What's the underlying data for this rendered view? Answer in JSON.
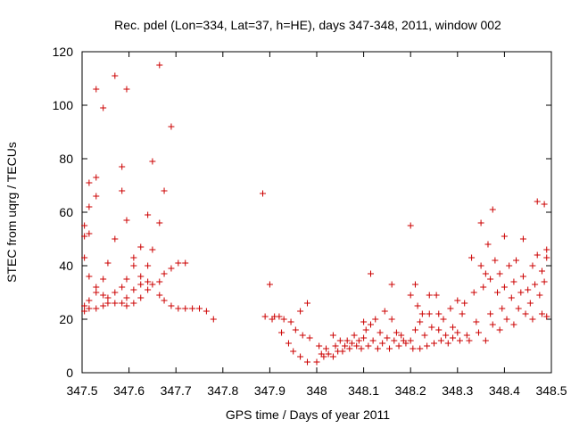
{
  "chart_data": {
    "type": "scatter",
    "title": "Rec. pdel (Lon=334, Lat=37, h=HE), days 347-348, 2011, window 002",
    "xlabel": "GPS time / Days of year 2011",
    "ylabel": "STEC from uqrg / TECUs",
    "xlim": [
      347.5,
      348.5
    ],
    "ylim": [
      0,
      120
    ],
    "xticks": [
      "347.5",
      "347.6",
      "347.7",
      "347.8",
      "347.9",
      "348",
      "348.1",
      "348.2",
      "348.3",
      "348.4",
      "348.5"
    ],
    "yticks": [
      "0",
      "20",
      "40",
      "60",
      "80",
      "100",
      "120"
    ],
    "grid": false,
    "marker": "plus",
    "color": "#cc0000",
    "points": [
      [
        347.505,
        55
      ],
      [
        347.505,
        51
      ],
      [
        347.505,
        43
      ],
      [
        347.505,
        25
      ],
      [
        347.505,
        23
      ],
      [
        347.515,
        71
      ],
      [
        347.515,
        62
      ],
      [
        347.515,
        52
      ],
      [
        347.515,
        36
      ],
      [
        347.515,
        27
      ],
      [
        347.515,
        24
      ],
      [
        347.53,
        106
      ],
      [
        347.53,
        73
      ],
      [
        347.53,
        66
      ],
      [
        347.53,
        32
      ],
      [
        347.53,
        30
      ],
      [
        347.53,
        24
      ],
      [
        347.545,
        99
      ],
      [
        347.545,
        35
      ],
      [
        347.545,
        29
      ],
      [
        347.545,
        25
      ],
      [
        347.555,
        41
      ],
      [
        347.555,
        28
      ],
      [
        347.555,
        26
      ],
      [
        347.57,
        111
      ],
      [
        347.57,
        50
      ],
      [
        347.57,
        30
      ],
      [
        347.57,
        26
      ],
      [
        347.585,
        77
      ],
      [
        347.585,
        68
      ],
      [
        347.585,
        32
      ],
      [
        347.585,
        26
      ],
      [
        347.595,
        106
      ],
      [
        347.595,
        57
      ],
      [
        347.595,
        35
      ],
      [
        347.595,
        28
      ],
      [
        347.595,
        25
      ],
      [
        347.61,
        43
      ],
      [
        347.61,
        40
      ],
      [
        347.61,
        31
      ],
      [
        347.61,
        26
      ],
      [
        347.625,
        47
      ],
      [
        347.625,
        36
      ],
      [
        347.625,
        33
      ],
      [
        347.625,
        28
      ],
      [
        347.64,
        59
      ],
      [
        347.64,
        40
      ],
      [
        347.64,
        34
      ],
      [
        347.64,
        31
      ],
      [
        347.65,
        79
      ],
      [
        347.65,
        46
      ],
      [
        347.65,
        33
      ],
      [
        347.665,
        115
      ],
      [
        347.665,
        56
      ],
      [
        347.665,
        34
      ],
      [
        347.665,
        29
      ],
      [
        347.675,
        68
      ],
      [
        347.675,
        37
      ],
      [
        347.675,
        27
      ],
      [
        347.69,
        92
      ],
      [
        347.69,
        39
      ],
      [
        347.69,
        25
      ],
      [
        347.705,
        41
      ],
      [
        347.705,
        24
      ],
      [
        347.72,
        41
      ],
      [
        347.72,
        24
      ],
      [
        347.735,
        24
      ],
      [
        347.75,
        24
      ],
      [
        347.765,
        23
      ],
      [
        347.78,
        20
      ],
      [
        347.885,
        67
      ],
      [
        347.89,
        21
      ],
      [
        347.9,
        33
      ],
      [
        347.905,
        20
      ],
      [
        347.91,
        21
      ],
      [
        347.92,
        21
      ],
      [
        347.925,
        15
      ],
      [
        347.93,
        20
      ],
      [
        347.94,
        11
      ],
      [
        347.945,
        19
      ],
      [
        347.95,
        8
      ],
      [
        347.955,
        16
      ],
      [
        347.965,
        23
      ],
      [
        347.965,
        6
      ],
      [
        347.97,
        14
      ],
      [
        347.98,
        26
      ],
      [
        347.98,
        4
      ],
      [
        347.985,
        13
      ],
      [
        348.0,
        4
      ],
      [
        348.005,
        10
      ],
      [
        348.01,
        7
      ],
      [
        348.015,
        6
      ],
      [
        348.02,
        9
      ],
      [
        348.025,
        7
      ],
      [
        348.035,
        14
      ],
      [
        348.035,
        6
      ],
      [
        348.04,
        10
      ],
      [
        348.045,
        8
      ],
      [
        348.05,
        12
      ],
      [
        348.055,
        8
      ],
      [
        348.06,
        10
      ],
      [
        348.065,
        12
      ],
      [
        348.07,
        9
      ],
      [
        348.075,
        11
      ],
      [
        348.08,
        14
      ],
      [
        348.085,
        10
      ],
      [
        348.09,
        12
      ],
      [
        348.095,
        9
      ],
      [
        348.1,
        19
      ],
      [
        348.1,
        13
      ],
      [
        348.105,
        16
      ],
      [
        348.11,
        10
      ],
      [
        348.115,
        37
      ],
      [
        348.115,
        18
      ],
      [
        348.12,
        12
      ],
      [
        348.125,
        20
      ],
      [
        348.13,
        9
      ],
      [
        348.135,
        15
      ],
      [
        348.14,
        11
      ],
      [
        348.145,
        23
      ],
      [
        348.15,
        13
      ],
      [
        348.155,
        9
      ],
      [
        348.16,
        33
      ],
      [
        348.16,
        20
      ],
      [
        348.165,
        12
      ],
      [
        348.17,
        15
      ],
      [
        348.175,
        10
      ],
      [
        348.18,
        14
      ],
      [
        348.185,
        12
      ],
      [
        348.19,
        11
      ],
      [
        348.2,
        55
      ],
      [
        348.2,
        29
      ],
      [
        348.2,
        12
      ],
      [
        348.205,
        9
      ],
      [
        348.21,
        33
      ],
      [
        348.21,
        16
      ],
      [
        348.215,
        25
      ],
      [
        348.22,
        19
      ],
      [
        348.22,
        9
      ],
      [
        348.225,
        22
      ],
      [
        348.23,
        14
      ],
      [
        348.235,
        10
      ],
      [
        348.24,
        29
      ],
      [
        348.24,
        22
      ],
      [
        348.245,
        17
      ],
      [
        348.25,
        11
      ],
      [
        348.255,
        29
      ],
      [
        348.26,
        22
      ],
      [
        348.26,
        16
      ],
      [
        348.265,
        12
      ],
      [
        348.27,
        20
      ],
      [
        348.275,
        14
      ],
      [
        348.28,
        11
      ],
      [
        348.285,
        24
      ],
      [
        348.29,
        17
      ],
      [
        348.29,
        13
      ],
      [
        348.3,
        27
      ],
      [
        348.3,
        15
      ],
      [
        348.305,
        12
      ],
      [
        348.31,
        22
      ],
      [
        348.315,
        26
      ],
      [
        348.32,
        14
      ],
      [
        348.325,
        12
      ],
      [
        348.33,
        43
      ],
      [
        348.335,
        30
      ],
      [
        348.34,
        19
      ],
      [
        348.345,
        15
      ],
      [
        348.35,
        56
      ],
      [
        348.35,
        40
      ],
      [
        348.355,
        32
      ],
      [
        348.36,
        37
      ],
      [
        348.36,
        12
      ],
      [
        348.365,
        48
      ],
      [
        348.37,
        22
      ],
      [
        348.37,
        35
      ],
      [
        348.375,
        61
      ],
      [
        348.375,
        18
      ],
      [
        348.38,
        42
      ],
      [
        348.385,
        30
      ],
      [
        348.39,
        37
      ],
      [
        348.39,
        16
      ],
      [
        348.395,
        24
      ],
      [
        348.4,
        51
      ],
      [
        348.4,
        32
      ],
      [
        348.405,
        20
      ],
      [
        348.41,
        40
      ],
      [
        348.415,
        28
      ],
      [
        348.42,
        34
      ],
      [
        348.42,
        18
      ],
      [
        348.425,
        42
      ],
      [
        348.43,
        24
      ],
      [
        348.435,
        30
      ],
      [
        348.44,
        50
      ],
      [
        348.44,
        36
      ],
      [
        348.445,
        22
      ],
      [
        348.45,
        31
      ],
      [
        348.455,
        26
      ],
      [
        348.46,
        40
      ],
      [
        348.46,
        20
      ],
      [
        348.465,
        33
      ],
      [
        348.47,
        64
      ],
      [
        348.47,
        44
      ],
      [
        348.475,
        29
      ],
      [
        348.48,
        38
      ],
      [
        348.48,
        22
      ],
      [
        348.485,
        63
      ],
      [
        348.485,
        34
      ],
      [
        348.49,
        46
      ],
      [
        348.49,
        43
      ],
      [
        348.49,
        21
      ]
    ]
  }
}
